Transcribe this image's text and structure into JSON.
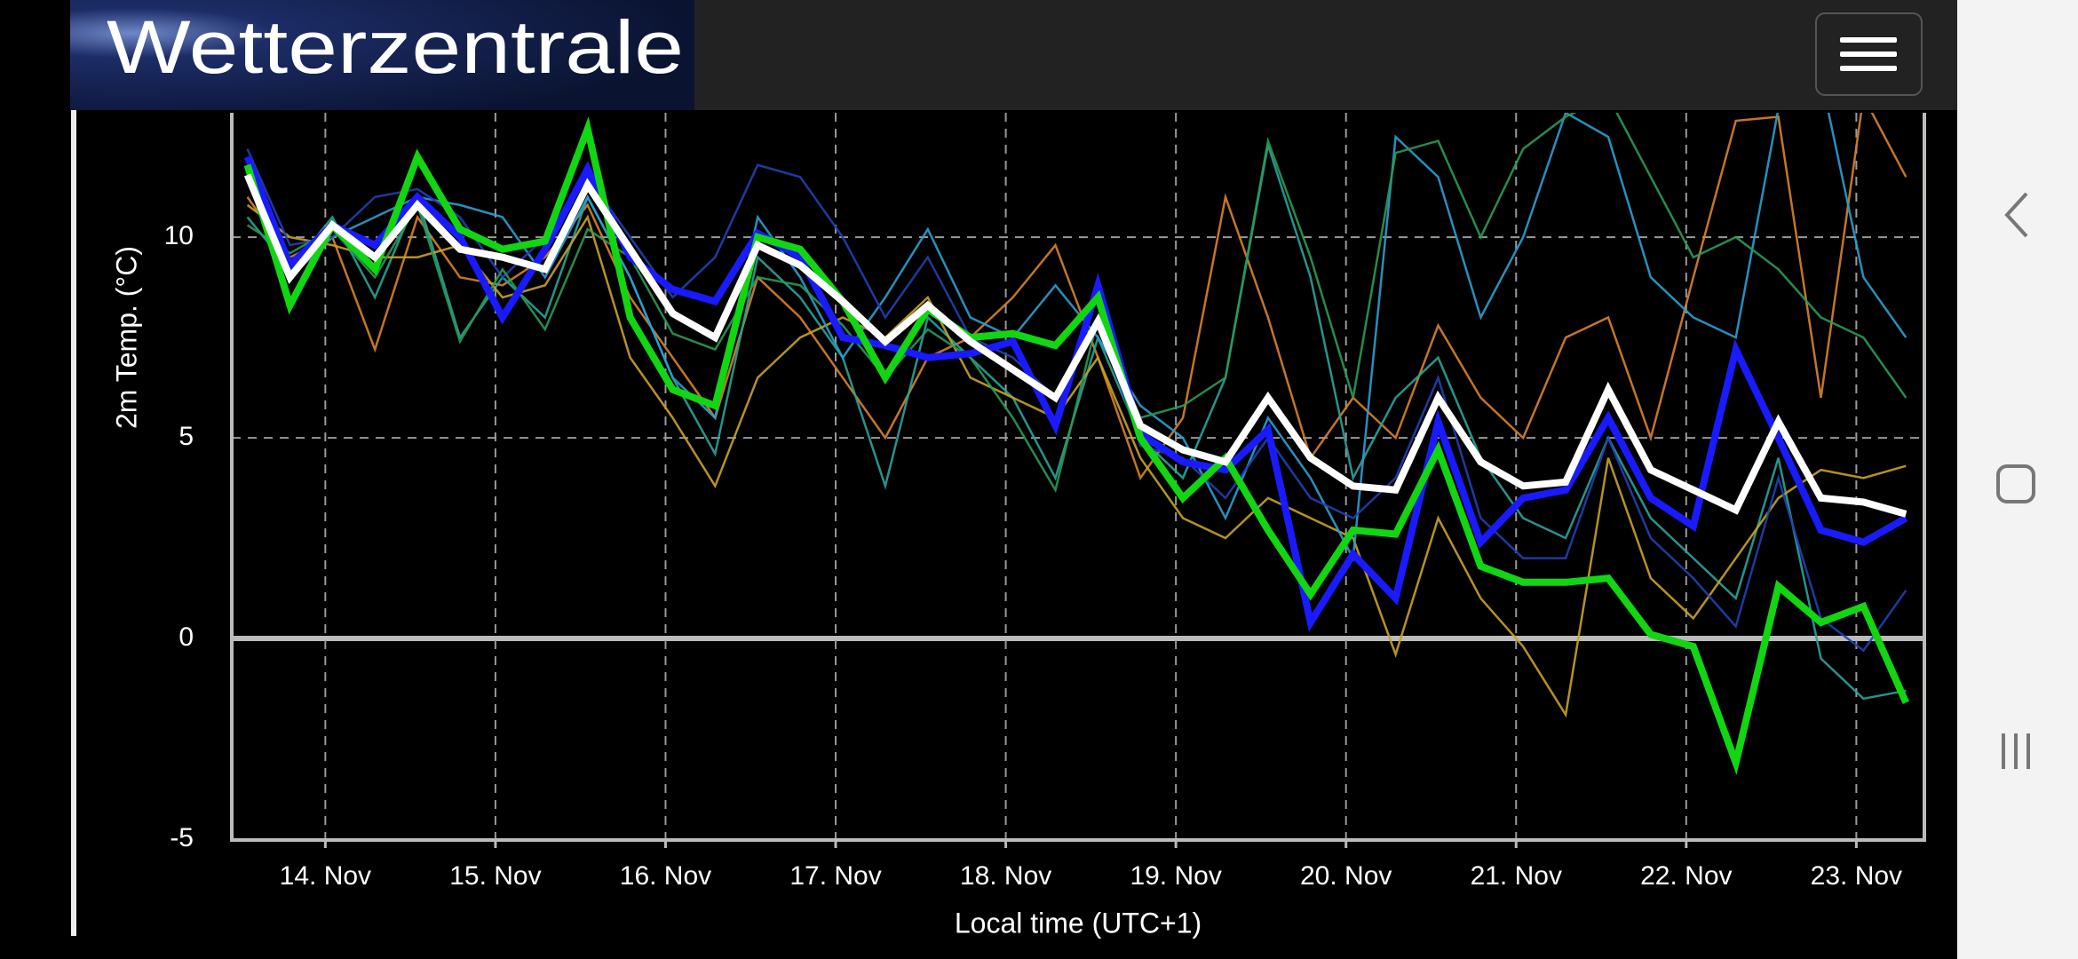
{
  "logo_text": "Wetterzentrale",
  "chart_data": {
    "type": "line",
    "y_label": "2m Temp. (°C)",
    "x_label": "Local time (UTC+1)",
    "ylim": [
      -5,
      13.1
    ],
    "yticks": [
      -5,
      0,
      5,
      10
    ],
    "xlim": [
      13.45,
      23.4
    ],
    "xticks": [
      {
        "value": 14,
        "label": "14. Nov"
      },
      {
        "value": 15,
        "label": "15. Nov"
      },
      {
        "value": 16,
        "label": "16. Nov"
      },
      {
        "value": 17,
        "label": "17. Nov"
      },
      {
        "value": 18,
        "label": "18. Nov"
      },
      {
        "value": 19,
        "label": "19. Nov"
      },
      {
        "value": 20,
        "label": "20. Nov"
      },
      {
        "value": 21,
        "label": "21. Nov"
      },
      {
        "value": 22,
        "label": "22. Nov"
      },
      {
        "value": 23,
        "label": "23. Nov"
      }
    ],
    "grid": true,
    "x": [
      13.5417,
      13.7917,
      14.0417,
      14.2917,
      14.5417,
      14.7917,
      15.0417,
      15.2917,
      15.5417,
      15.7917,
      16.0417,
      16.2917,
      16.5417,
      16.7917,
      17.0417,
      17.2917,
      17.5417,
      17.7917,
      18.0417,
      18.2917,
      18.5417,
      18.7917,
      19.0417,
      19.2917,
      19.5417,
      19.7917,
      20.0417,
      20.2917,
      20.5417,
      20.7917,
      21.0417,
      21.2917,
      21.5417,
      21.7917,
      22.0417,
      22.2917,
      22.5417,
      22.7917,
      23.0417,
      23.2917
    ],
    "series": [
      {
        "color": "#d9822b",
        "values": [
          11.0,
          9.5,
          10.0,
          7.2,
          10.5,
          9.0,
          8.8,
          9.5,
          10.8,
          8.5,
          7.0,
          5.5,
          9.0,
          8.0,
          6.5,
          5.0,
          7.0,
          7.5,
          8.5,
          9.8,
          7.0,
          4.0,
          5.5,
          11.0,
          8.0,
          4.5,
          6.0,
          5.0,
          7.8,
          6.0,
          5.0,
          7.5,
          8.0,
          5.0,
          9.0,
          12.9,
          13.0,
          6.0,
          13.5,
          11.5
        ]
      },
      {
        "color": "#2aa39a",
        "values": [
          10.5,
          9.2,
          10.5,
          8.5,
          11.0,
          7.5,
          9.0,
          8.0,
          11.0,
          9.0,
          6.5,
          4.6,
          9.5,
          8.5,
          7.0,
          3.8,
          8.0,
          7.0,
          6.0,
          4.0,
          7.5,
          5.0,
          4.0,
          6.5,
          12.3,
          9.0,
          4.0,
          6.0,
          7.0,
          4.5,
          3.0,
          2.5,
          5.0,
          3.0,
          2.0,
          1.0,
          4.5,
          -0.5,
          -1.5,
          -1.3
        ]
      },
      {
        "color": "#c9a227",
        "values": [
          10.8,
          10.0,
          9.8,
          9.5,
          9.5,
          9.8,
          8.5,
          8.8,
          10.5,
          7.0,
          5.5,
          3.8,
          6.5,
          7.5,
          8.0,
          7.5,
          8.5,
          6.5,
          6.0,
          5.5,
          7.0,
          4.5,
          3.0,
          2.5,
          3.5,
          3.0,
          2.5,
          -0.4,
          3.0,
          1.0,
          -0.2,
          -1.9,
          4.5,
          1.5,
          0.5,
          2.0,
          3.5,
          4.2,
          4.0,
          4.3
        ]
      },
      {
        "color": "#2b9fd0",
        "values": [
          11.5,
          9.0,
          10.0,
          10.5,
          11.0,
          10.8,
          10.5,
          9.0,
          11.0,
          9.0,
          6.5,
          5.5,
          10.5,
          9.0,
          7.0,
          8.5,
          10.2,
          8.0,
          7.5,
          8.8,
          7.5,
          5.8,
          5.0,
          3.0,
          5.5,
          4.0,
          2.0,
          12.5,
          11.5,
          8.0,
          10.0,
          13.1,
          12.5,
          9.0,
          8.0,
          7.5,
          13.2,
          14.0,
          9.0,
          7.5
        ]
      },
      {
        "color": "#2040b0",
        "values": [
          12.2,
          9.8,
          10.0,
          11.0,
          11.2,
          10.5,
          9.0,
          10.0,
          11.5,
          10.0,
          8.5,
          9.5,
          11.8,
          11.5,
          10.0,
          8.0,
          9.5,
          7.5,
          7.0,
          6.0,
          8.0,
          4.8,
          4.5,
          3.5,
          5.0,
          3.5,
          3.0,
          4.0,
          6.5,
          3.0,
          2.0,
          2.0,
          5.0,
          2.5,
          1.5,
          0.3,
          4.0,
          0.5,
          -0.3,
          1.2
        ]
      },
      {
        "color": "#2a9a55",
        "values": [
          10.3,
          9.6,
          10.2,
          9.0,
          10.8,
          7.4,
          9.2,
          7.7,
          10.2,
          9.5,
          7.6,
          7.2,
          9.0,
          8.8,
          7.8,
          6.5,
          7.7,
          7.0,
          5.5,
          3.7,
          8.0,
          5.5,
          5.8,
          6.5,
          12.4,
          9.5,
          6.0,
          12.1,
          12.4,
          10.0,
          12.2,
          13.0,
          13.5,
          11.5,
          9.5,
          10.0,
          9.2,
          8.0,
          7.5,
          6.0
        ]
      },
      {
        "color": "#1a1aff",
        "values": [
          12.0,
          9.3,
          10.3,
          9.8,
          11.0,
          10.0,
          8.0,
          9.7,
          11.7,
          9.5,
          8.7,
          8.4,
          10.1,
          9.5,
          7.5,
          7.3,
          7.0,
          7.1,
          7.4,
          5.3,
          8.8,
          5.1,
          4.4,
          4.2,
          5.2,
          0.4,
          2.1,
          1.0,
          5.4,
          2.4,
          3.5,
          3.7,
          5.5,
          3.5,
          2.8,
          7.2,
          5.0,
          2.7,
          2.4,
          3.0
        ]
      },
      {
        "color": "#11d611",
        "values": [
          11.8,
          8.3,
          10.3,
          9.2,
          12.0,
          10.2,
          9.7,
          9.9,
          12.7,
          8.0,
          6.2,
          5.8,
          10.0,
          9.7,
          8.4,
          6.5,
          8.2,
          7.5,
          7.6,
          7.3,
          8.5,
          5.0,
          3.5,
          4.5,
          2.7,
          1.1,
          2.7,
          2.6,
          4.7,
          1.8,
          1.4,
          1.4,
          1.5,
          0.1,
          -0.2,
          -3.1,
          1.3,
          0.4,
          0.8,
          -1.6
        ]
      },
      {
        "color": "#ffffff",
        "values": [
          11.55,
          9.0,
          10.3,
          9.5,
          10.8,
          9.7,
          9.5,
          9.2,
          11.3,
          9.7,
          8.1,
          7.5,
          9.8,
          9.3,
          8.4,
          7.4,
          8.3,
          7.4,
          6.7,
          6.0,
          7.9,
          5.3,
          4.7,
          4.4,
          6.0,
          4.5,
          3.8,
          3.7,
          6.0,
          4.4,
          3.8,
          3.9,
          6.2,
          4.2,
          3.7,
          3.2,
          5.4,
          3.5,
          3.4,
          3.1
        ]
      }
    ]
  }
}
